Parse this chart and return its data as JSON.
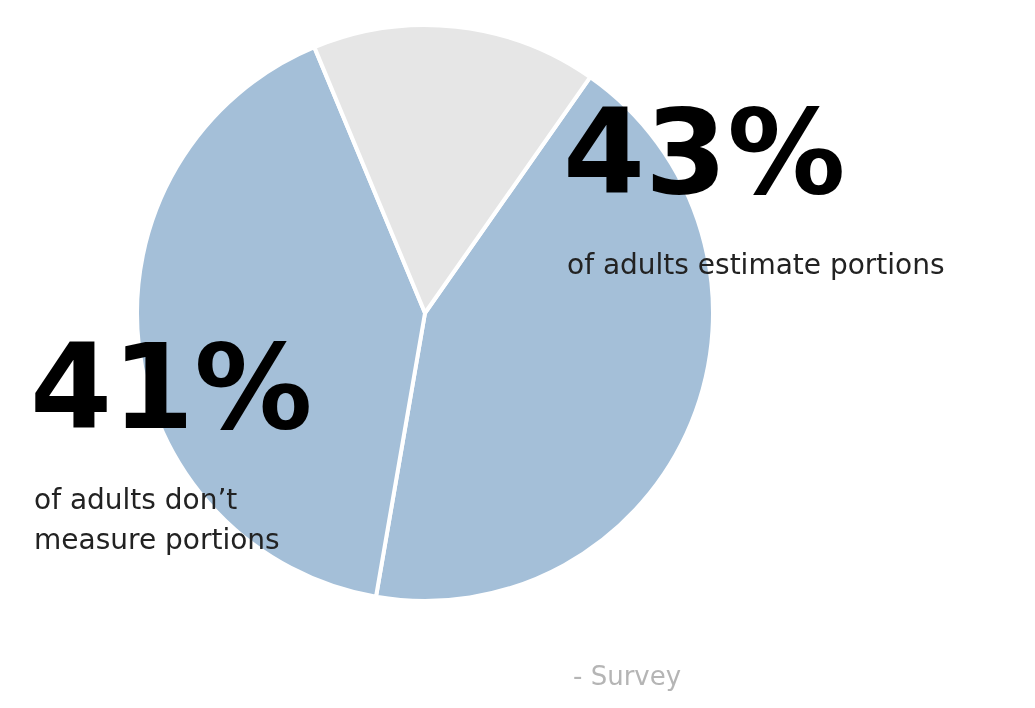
{
  "chart_data": {
    "type": "pie",
    "categories": [
      "of adults estimate portions",
      "of adults don’t measure portions",
      null
    ],
    "values": [
      43,
      41,
      16
    ],
    "colors": [
      "#a4bfd8",
      "#a4bfd8",
      "#e6e6e6"
    ],
    "value_labels": [
      "43%",
      "41%",
      null
    ],
    "legend": false,
    "annotations": [
      "- Survey"
    ]
  }
}
